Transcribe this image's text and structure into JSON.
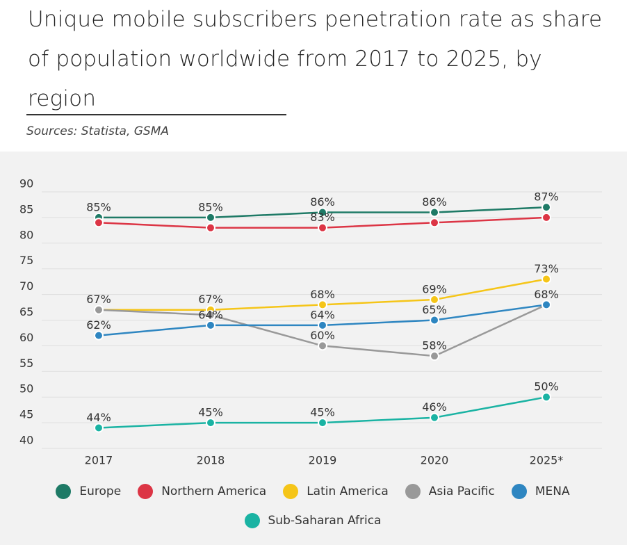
{
  "chart_data": {
    "type": "line",
    "title": "Unique mobile subscribers penetration rate as share of population worldwide from 2017 to 2025, by region",
    "subtitle": "Sources: Statista, GSMA",
    "categories": [
      "2017",
      "2018",
      "2019",
      "2020",
      "2025*"
    ],
    "series": [
      {
        "name": "Europe",
        "color": "#1e7a66",
        "values": [
          85,
          85,
          86,
          86,
          87
        ],
        "value_labels": [
          "85%",
          "85%",
          "86%",
          "86%",
          "87%"
        ]
      },
      {
        "name": "Northern America",
        "color": "#dc3545",
        "values": [
          84,
          83,
          83,
          84,
          85
        ],
        "value_labels": [
          null,
          null,
          "83%",
          null,
          null
        ]
      },
      {
        "name": "Latin America",
        "color": "#f5c518",
        "values": [
          67,
          67,
          68,
          69,
          73
        ],
        "value_labels": [
          "67%",
          "67%",
          "68%",
          "69%",
          "73%"
        ]
      },
      {
        "name": "Asia Pacific",
        "color": "#999999",
        "values": [
          67,
          66,
          60,
          58,
          68
        ],
        "value_labels": [
          null,
          null,
          "60%",
          "58%",
          null
        ]
      },
      {
        "name": "MENA",
        "color": "#2e86c1",
        "values": [
          62,
          64,
          64,
          65,
          68
        ],
        "value_labels": [
          "62%",
          "64%",
          "64%",
          "65%",
          "68%"
        ]
      },
      {
        "name": "Sub-Saharan Africa",
        "color": "#1ab3a3",
        "values": [
          44,
          45,
          45,
          46,
          50
        ],
        "value_labels": [
          "44%",
          "45%",
          "45%",
          "46%",
          "50%"
        ]
      }
    ],
    "ylim": [
      40,
      90
    ],
    "yticks": [
      40,
      45,
      50,
      55,
      60,
      65,
      70,
      75,
      80,
      85,
      90
    ],
    "grid": true,
    "legend": "bottom"
  }
}
